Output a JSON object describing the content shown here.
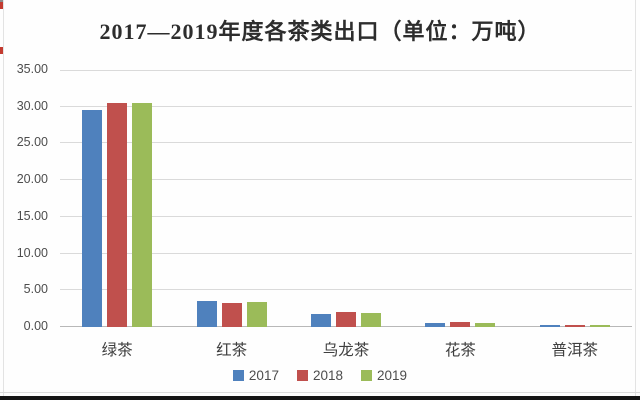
{
  "window": {
    "bg_color": "#fefefe",
    "bottom_edge_color": "#151515",
    "artifact_color": "#c33b30"
  },
  "chart_data": {
    "type": "bar",
    "title": "2017—2019年度各茶类出口（单位：万吨）",
    "unit_label": "万吨",
    "categories": [
      "绿茶",
      "红茶",
      "乌龙茶",
      "花茶",
      "普洱茶"
    ],
    "series": [
      {
        "name": "2017",
        "color": "#4f81bd",
        "values": [
          29.5,
          3.5,
          1.8,
          0.6,
          0.3
        ]
      },
      {
        "name": "2018",
        "color": "#c0504d",
        "values": [
          30.5,
          3.3,
          2.1,
          0.65,
          0.3
        ]
      },
      {
        "name": "2019",
        "color": "#9bbb59",
        "values": [
          30.5,
          3.4,
          1.9,
          0.6,
          0.25
        ]
      }
    ],
    "ylim": [
      0,
      35
    ],
    "ytick_step": 5,
    "ytick_labels": [
      "0.00",
      "5.00",
      "10.00",
      "15.00",
      "20.00",
      "25.00",
      "30.00",
      "35.00"
    ],
    "grid": true,
    "gridline_color": "#dadada",
    "legend_position": "bottom",
    "legend_entries": [
      "2017",
      "2018",
      "2019"
    ]
  }
}
